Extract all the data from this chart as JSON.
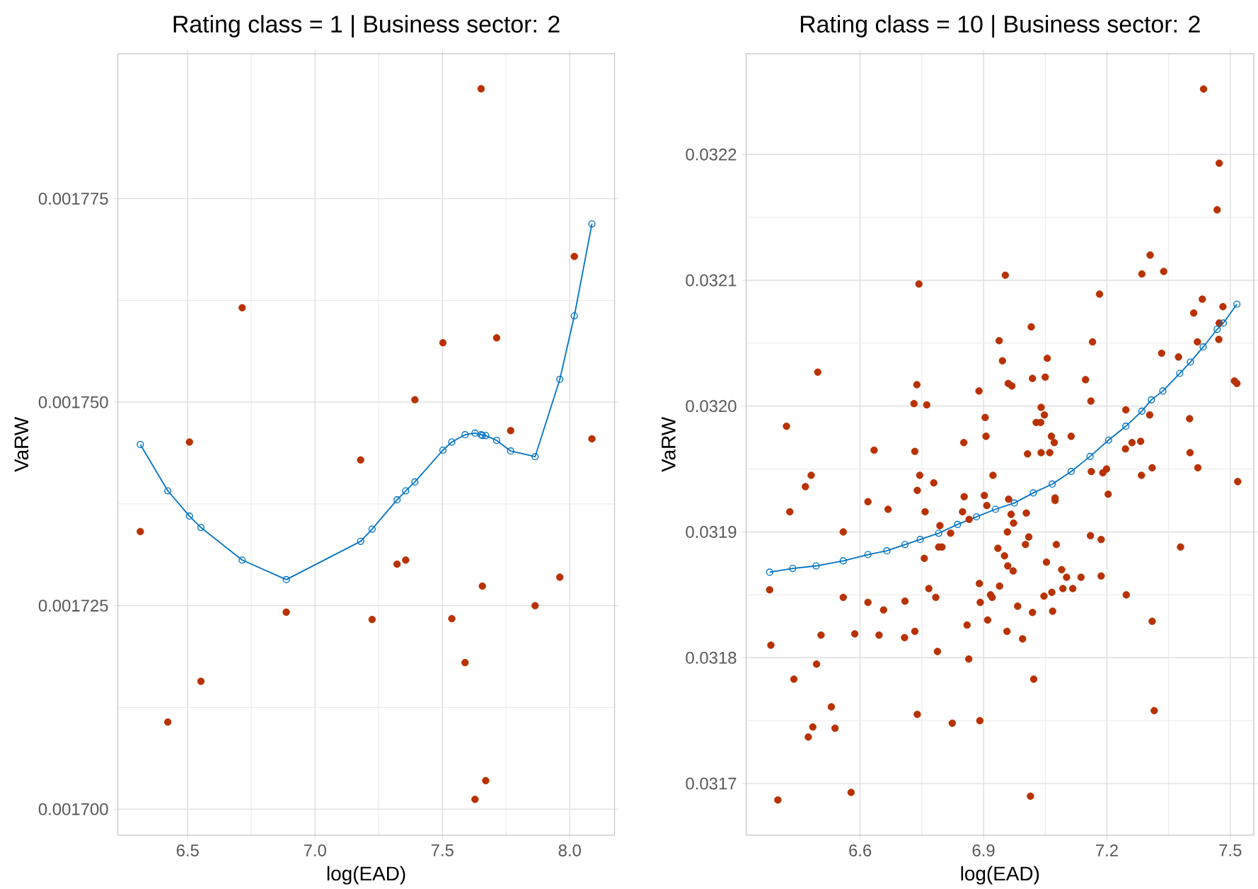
{
  "chart_data": [
    {
      "type": "scatter",
      "title": "Rating class = 1   |   Business sector:  2",
      "xlabel": "log(EAD)",
      "ylabel": "VaRW",
      "xlim": [
        6.226,
        8.176
      ],
      "ylim": [
        0.0016968,
        0.0017928
      ],
      "xticks": [
        6.5,
        {
          "value": 7,
          "label": "7.0"
        },
        7.5,
        {
          "value": 8,
          "label": "8.0"
        }
      ],
      "yticks": [
        {
          "value": 0.0017,
          "label": "0.001700"
        },
        0.001725,
        {
          "value": 0.00175,
          "label": "0.001750"
        },
        0.001775
      ],
      "grid": true,
      "marker": "circle",
      "x": [
        6.314,
        6.422,
        6.507,
        6.552,
        6.714,
        6.887,
        7.179,
        7.224,
        7.322,
        7.356,
        7.392,
        7.502,
        7.537,
        7.589,
        7.628,
        7.652,
        7.657,
        7.67,
        7.713,
        7.768,
        7.864,
        7.961,
        8.018,
        8.087
      ],
      "series": [
        {
          "color": "#b83200",
          "values": [
            0.0017341,
            0.0017107,
            0.0017451,
            0.0017157,
            0.0017616,
            0.0017242,
            0.0017429,
            0.0017233,
            0.0017301,
            0.0017306,
            0.0017503,
            0.0017573,
            0.0017234,
            0.001718,
            0.0017012,
            0.0017885,
            0.0017274,
            0.0017035,
            0.0017579,
            0.0017465,
            0.001725,
            0.0017285,
            0.0017679,
            0.0017455
          ]
        },
        {
          "type": "line",
          "color": "#0072c4",
          "values": [
            0.0017448,
            0.0017391,
            0.001736,
            0.0017346,
            0.0017306,
            0.0017282,
            0.0017329,
            0.0017344,
            0.001738,
            0.0017391,
            0.0017402,
            0.0017441,
            0.0017451,
            0.001746,
            0.0017462,
            0.001746,
            0.0017459,
            0.0017459,
            0.0017453,
            0.001744,
            0.0017433,
            0.0017528,
            0.0017606,
            0.0017719
          ]
        }
      ]
    },
    {
      "type": "scatter",
      "title": "Rating class = 10   |   Business sector:  2",
      "xlabel": "log(EAD)",
      "ylabel": "VaRW",
      "xlim": [
        6.323,
        7.557
      ],
      "ylim": [
        0.031659,
        0.03228
      ],
      "xticks": [
        6.6,
        6.9,
        7.2,
        7.5
      ],
      "yticks": [
        0.0317,
        0.0318,
        0.0319,
        {
          "value": 0.032,
          "label": "0.0320"
        },
        0.0321,
        0.0322
      ],
      "grid": true,
      "marker": "circle",
      "series": [
        {
          "color": "#b83200",
          "x": [
            7.435,
            7.473,
            7.468,
            7.305,
            7.285,
            7.338,
            6.953,
            6.743,
            7.182,
            7.432,
            7.482,
            7.411,
            7.473,
            7.016,
            7.472,
            6.938,
            7.165,
            7.42,
            7.333,
            7.374,
            7.055,
            6.946,
            6.497,
            7.019,
            7.05,
            7.148,
            7.51,
            7.516,
            6.738,
            6.96,
            6.969,
            6.889,
            6.731,
            6.762,
            7.161,
            7.04,
            7.246,
            7.401,
            6.421,
            6.904,
            7.304,
            7.048,
            7.028,
            7.039,
            6.906,
            7.065,
            7.113,
            7.072,
            6.852,
            7.261,
            7.282,
            7.245,
            6.634,
            6.733,
            7.007,
            7.04,
            7.061,
            7.402,
            7.421,
            7.31,
            7.284,
            7.162,
            7.19,
            7.199,
            7.518,
            7.203,
            6.481,
            6.467,
            6.429,
            6.619,
            6.668,
            6.745,
            6.739,
            6.779,
            6.758,
            6.923,
            6.902,
            6.908,
            6.853,
            6.849,
            6.865,
            6.961,
            6.967,
            6.973,
            7.004,
            7.074,
            7.074,
            6.958,
            7.01,
            7.002,
            7.077,
            7.16,
            7.186,
            6.559,
            6.794,
            6.82,
            6.791,
            6.799,
            6.756,
            7.379,
            6.935,
            6.951,
            6.959,
            6.972,
            7.053,
            7.09,
            7.102,
            7.137,
            7.186,
            6.89,
            6.939,
            7.093,
            7.117,
            7.047,
            7.066,
            6.917,
            6.921,
            7.247,
            6.767,
            6.784,
            6.559,
            6.38,
            6.619,
            6.657,
            6.709,
            6.892,
            7.068,
            7.019,
            6.983,
            6.91,
            7.31,
            6.86,
            6.733,
            6.708,
            6.646,
            6.587,
            6.505,
            6.957,
            6.995,
            6.383,
            6.788,
            6.864,
            6.494,
            6.439,
            7.022,
            6.53,
            7.315,
            6.739,
            6.824,
            6.891,
            6.485,
            6.539,
            6.474,
            6.578,
            7.014,
            6.4
          ],
          "values": [
            0.032252,
            0.032193,
            0.032156,
            0.03212,
            0.032105,
            0.032107,
            0.032104,
            0.032097,
            0.032089,
            0.032085,
            0.032079,
            0.032074,
            0.032066,
            0.032063,
            0.032053,
            0.032052,
            0.032051,
            0.032051,
            0.032042,
            0.032039,
            0.032038,
            0.032036,
            0.032027,
            0.032022,
            0.032023,
            0.032021,
            0.03202,
            0.032018,
            0.032017,
            0.032018,
            0.032016,
            0.032012,
            0.032002,
            0.032001,
            0.032004,
            0.031999,
            0.031997,
            0.03199,
            0.031984,
            0.031991,
            0.031993,
            0.031993,
            0.031987,
            0.031987,
            0.031976,
            0.031976,
            0.031976,
            0.031971,
            0.031971,
            0.031971,
            0.031972,
            0.031966,
            0.031965,
            0.031964,
            0.031962,
            0.031963,
            0.031963,
            0.031963,
            0.031951,
            0.031951,
            0.031945,
            0.031948,
            0.031947,
            0.03195,
            0.03194,
            0.03193,
            0.031945,
            0.031936,
            0.031916,
            0.031924,
            0.031918,
            0.031945,
            0.031933,
            0.031939,
            0.031916,
            0.031945,
            0.031929,
            0.031921,
            0.031928,
            0.031916,
            0.03191,
            0.031926,
            0.031914,
            0.031907,
            0.031915,
            0.031927,
            0.031925,
            0.0319,
            0.031896,
            0.03189,
            0.03189,
            0.031897,
            0.031894,
            0.0319,
            0.031905,
            0.031899,
            0.031888,
            0.031888,
            0.031879,
            0.031888,
            0.031887,
            0.031881,
            0.031873,
            0.031869,
            0.031876,
            0.03187,
            0.031864,
            0.031864,
            0.031865,
            0.031859,
            0.031857,
            0.031855,
            0.031855,
            0.031849,
            0.031852,
            0.03185,
            0.031848,
            0.03185,
            0.031855,
            0.031848,
            0.031848,
            0.031854,
            0.031844,
            0.031838,
            0.031845,
            0.031844,
            0.031837,
            0.031836,
            0.031841,
            0.03183,
            0.031829,
            0.031826,
            0.031821,
            0.031816,
            0.031818,
            0.031819,
            0.031818,
            0.031821,
            0.031815,
            0.03181,
            0.031805,
            0.031799,
            0.031795,
            0.031783,
            0.031783,
            0.031761,
            0.031758,
            0.031755,
            0.031748,
            0.03175,
            0.031745,
            0.031744,
            0.031737,
            0.031693,
            0.03169,
            0.031687
          ]
        },
        {
          "type": "line",
          "color": "#0072c4",
          "x": [
            6.38,
            6.436,
            6.493,
            6.559,
            6.619,
            6.665,
            6.709,
            6.746,
            6.791,
            6.837,
            6.883,
            6.929,
            6.975,
            7.021,
            7.067,
            7.113,
            7.159,
            7.204,
            7.246,
            7.285,
            7.308,
            7.336,
            7.377,
            7.403,
            7.434,
            7.468,
            7.483,
            7.516
          ],
          "values": [
            0.031868,
            0.031871,
            0.031873,
            0.031877,
            0.031882,
            0.031885,
            0.03189,
            0.031894,
            0.031899,
            0.031906,
            0.031912,
            0.031918,
            0.031923,
            0.031931,
            0.031938,
            0.031948,
            0.03196,
            0.031973,
            0.031984,
            0.031996,
            0.032005,
            0.032012,
            0.032026,
            0.032035,
            0.032047,
            0.032061,
            0.032066,
            0.032081
          ]
        }
      ]
    }
  ]
}
